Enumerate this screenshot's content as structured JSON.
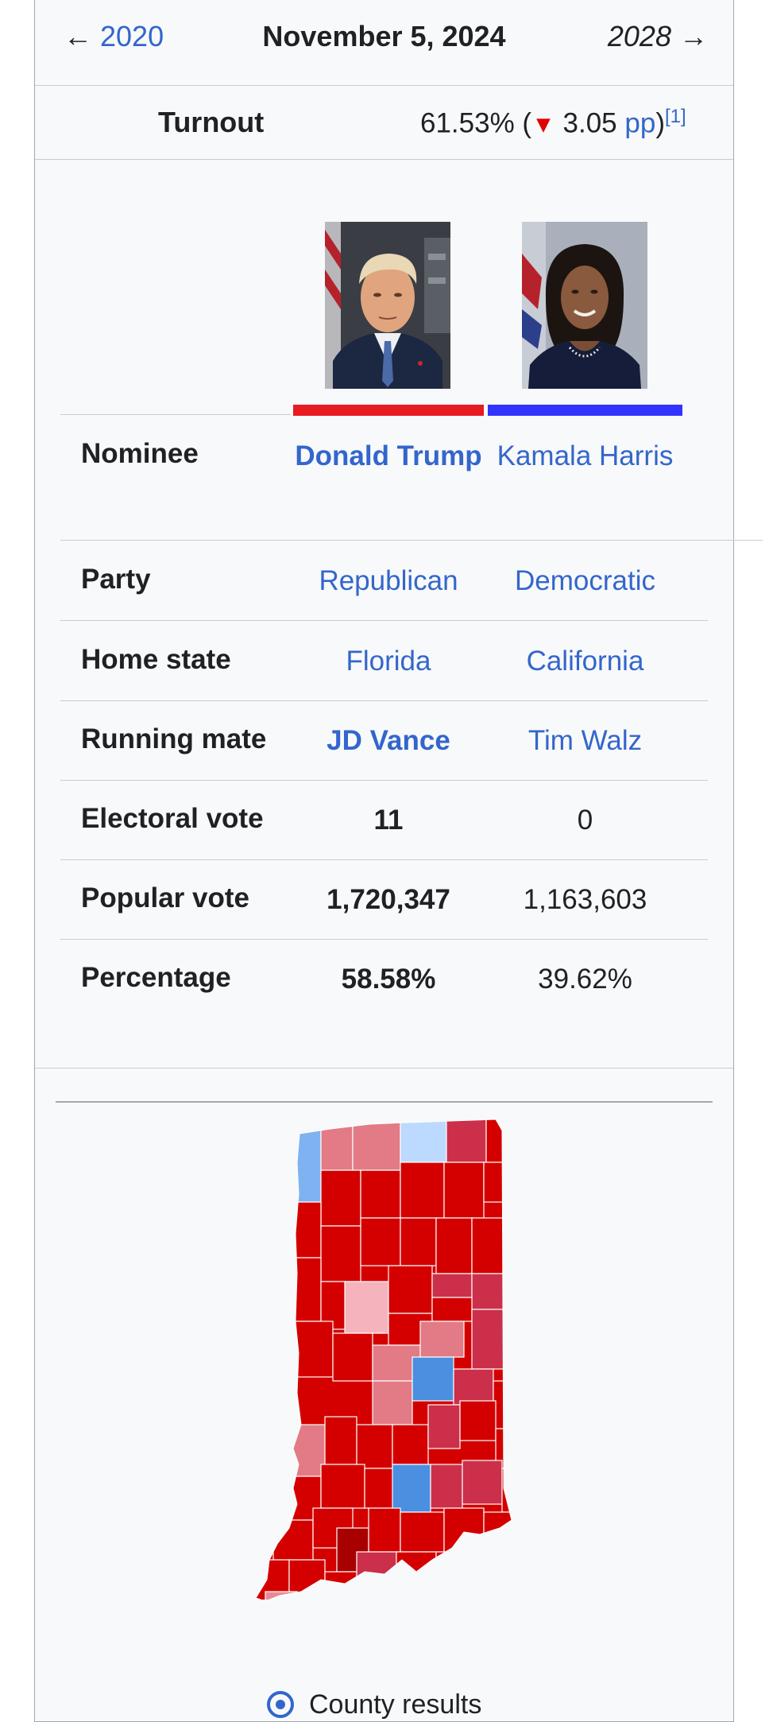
{
  "nav": {
    "prev_arrow": "←",
    "prev_year": "2020",
    "date": "November 5, 2024",
    "next_year": "2028",
    "next_arrow": "→"
  },
  "turnout": {
    "label": "Turnout",
    "percent": "61.53% (",
    "change_icon": "▼",
    "change": " 3.05 ",
    "unit": "pp",
    "close": ")",
    "ref": "[1]"
  },
  "candidates": {
    "trump": {
      "nominee": "Donald Trump",
      "party": "Republican",
      "home_state": "Florida",
      "running_mate": "JD Vance",
      "electoral_vote": "11",
      "popular_vote": "1,720,347",
      "percentage": "58.58%",
      "color": "#e81b23",
      "portrait": "trump-portrait-photo"
    },
    "harris": {
      "nominee": "Kamala Harris",
      "party": "Democratic",
      "home_state": "California",
      "running_mate": "Tim Walz",
      "electoral_vote": "0",
      "popular_vote": "1,163,603",
      "percentage": "39.62%",
      "color": "#3333ff",
      "portrait": "harris-portrait-photo"
    }
  },
  "labels": {
    "nominee": "Nominee",
    "party": "Party",
    "home_state": "Home state",
    "running_mate": "Running mate",
    "electoral_vote": "Electoral vote",
    "popular_vote": "Popular vote",
    "percentage": "Percentage"
  },
  "map": {
    "name": "indiana-county-results-map",
    "radio_label": "County results"
  }
}
